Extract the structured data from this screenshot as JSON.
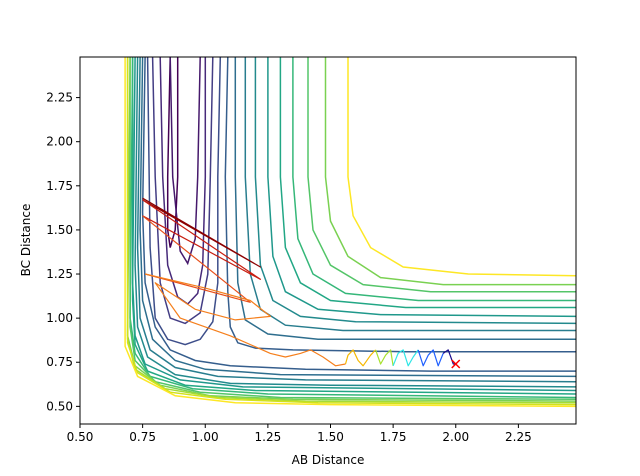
{
  "chart_data": {
    "type": "line",
    "plot_kind": "contour",
    "title": "",
    "xlabel": "AB Distance",
    "ylabel": "BC Distance",
    "xlim": [
      0.5,
      2.48
    ],
    "ylim": [
      0.4,
      2.48
    ],
    "xticks": [
      0.5,
      0.75,
      1.0,
      1.25,
      1.5,
      1.75,
      2.0,
      2.25
    ],
    "xtick_labels": [
      "0.50",
      "0.75",
      "1.00",
      "1.25",
      "1.50",
      "1.75",
      "2.00",
      "2.25"
    ],
    "yticks": [
      0.5,
      0.75,
      1.0,
      1.25,
      1.5,
      1.75,
      2.0,
      2.25
    ],
    "ytick_labels": [
      "0.50",
      "0.75",
      "1.00",
      "1.25",
      "1.50",
      "1.75",
      "2.00",
      "2.25"
    ],
    "grid": false,
    "legend": "none",
    "contours": [
      {
        "color": "#440154",
        "points": [
          [
            0.86,
            2.48
          ],
          [
            0.85,
            1.8
          ],
          [
            0.85,
            1.5
          ],
          [
            0.86,
            1.4
          ],
          [
            0.88,
            1.5
          ],
          [
            0.89,
            1.8
          ],
          [
            0.89,
            2.48
          ]
        ]
      },
      {
        "color": "#46196c",
        "points": [
          [
            0.98,
            2.48
          ],
          [
            0.97,
            1.8
          ],
          [
            0.96,
            1.45
          ],
          [
            0.93,
            1.31
          ],
          [
            0.9,
            1.38
          ],
          [
            0.87,
            1.8
          ],
          [
            0.86,
            2.48
          ]
        ]
      },
      {
        "color": "#472a7a",
        "points": [
          [
            1.0,
            2.48
          ],
          [
            1.0,
            1.8
          ],
          [
            0.99,
            1.3
          ],
          [
            0.97,
            1.14
          ],
          [
            0.93,
            1.08
          ],
          [
            0.89,
            1.12
          ],
          [
            0.85,
            1.3
          ],
          [
            0.83,
            1.8
          ],
          [
            0.82,
            2.48
          ]
        ]
      },
      {
        "color": "#433d84",
        "points": [
          [
            1.03,
            2.48
          ],
          [
            1.02,
            1.8
          ],
          [
            1.01,
            1.25
          ],
          [
            0.98,
            1.03
          ],
          [
            0.92,
            0.97
          ],
          [
            0.86,
            1.0
          ],
          [
            0.82,
            1.2
          ],
          [
            0.8,
            1.8
          ],
          [
            0.79,
            2.48
          ]
        ]
      },
      {
        "color": "#3d4e8a",
        "points": [
          [
            1.06,
            2.48
          ],
          [
            1.05,
            1.8
          ],
          [
            1.05,
            1.2
          ],
          [
            1.03,
            0.98
          ],
          [
            0.98,
            0.88
          ],
          [
            0.92,
            0.85
          ],
          [
            0.85,
            0.88
          ],
          [
            0.8,
            1.0
          ],
          [
            0.78,
            1.4
          ],
          [
            0.77,
            2.48
          ]
        ]
      },
      {
        "color": "#355e8d",
        "points": [
          [
            1.09,
            2.48
          ],
          [
            1.08,
            1.8
          ],
          [
            1.09,
            1.15
          ],
          [
            1.1,
            0.95
          ],
          [
            1.13,
            0.86
          ],
          [
            1.2,
            0.83
          ],
          [
            1.35,
            0.82
          ],
          [
            1.8,
            0.81
          ],
          [
            2.48,
            0.81
          ]
        ]
      },
      {
        "color": "#355e8d",
        "points": [
          [
            0.76,
            2.48
          ],
          [
            0.75,
            1.6
          ],
          [
            0.76,
            1.2
          ],
          [
            0.8,
            0.95
          ],
          [
            0.86,
            0.82
          ],
          [
            0.96,
            0.76
          ],
          [
            1.1,
            0.73
          ],
          [
            1.4,
            0.71
          ],
          [
            1.9,
            0.7
          ],
          [
            2.48,
            0.7
          ]
        ]
      },
      {
        "color": "#2e6e8e",
        "points": [
          [
            1.12,
            2.48
          ],
          [
            1.12,
            1.8
          ],
          [
            1.13,
            1.2
          ],
          [
            1.16,
            0.99
          ],
          [
            1.25,
            0.91
          ],
          [
            1.45,
            0.88
          ],
          [
            2.48,
            0.88
          ]
        ]
      },
      {
        "color": "#2e6e8e",
        "points": [
          [
            0.75,
            2.48
          ],
          [
            0.74,
            1.5
          ],
          [
            0.75,
            1.1
          ],
          [
            0.79,
            0.88
          ],
          [
            0.88,
            0.76
          ],
          [
            1.0,
            0.71
          ],
          [
            1.3,
            0.68
          ],
          [
            2.48,
            0.67
          ]
        ]
      },
      {
        "color": "#287d8e",
        "points": [
          [
            1.16,
            2.48
          ],
          [
            1.16,
            1.8
          ],
          [
            1.18,
            1.25
          ],
          [
            1.22,
            1.05
          ],
          [
            1.32,
            0.96
          ],
          [
            1.55,
            0.93
          ],
          [
            2.48,
            0.93
          ]
        ]
      },
      {
        "color": "#287d8e",
        "points": [
          [
            0.74,
            2.48
          ],
          [
            0.73,
            1.4
          ],
          [
            0.74,
            1.0
          ],
          [
            0.78,
            0.82
          ],
          [
            0.88,
            0.72
          ],
          [
            1.05,
            0.67
          ],
          [
            1.4,
            0.65
          ],
          [
            2.48,
            0.64
          ]
        ]
      },
      {
        "color": "#238a8d",
        "points": [
          [
            1.2,
            2.48
          ],
          [
            1.2,
            1.8
          ],
          [
            1.22,
            1.3
          ],
          [
            1.27,
            1.1
          ],
          [
            1.38,
            1.01
          ],
          [
            1.6,
            0.98
          ],
          [
            2.48,
            0.97
          ]
        ]
      },
      {
        "color": "#238a8d",
        "points": [
          [
            0.73,
            2.48
          ],
          [
            0.72,
            1.3
          ],
          [
            0.73,
            0.95
          ],
          [
            0.77,
            0.78
          ],
          [
            0.88,
            0.68
          ],
          [
            1.1,
            0.63
          ],
          [
            1.5,
            0.62
          ],
          [
            2.48,
            0.61
          ]
        ]
      },
      {
        "color": "#1f988b",
        "points": [
          [
            1.25,
            2.48
          ],
          [
            1.25,
            1.8
          ],
          [
            1.27,
            1.35
          ],
          [
            1.32,
            1.15
          ],
          [
            1.45,
            1.05
          ],
          [
            1.7,
            1.02
          ],
          [
            2.48,
            1.01
          ]
        ]
      },
      {
        "color": "#1f988b",
        "points": [
          [
            0.72,
            2.48
          ],
          [
            0.71,
            1.2
          ],
          [
            0.72,
            0.9
          ],
          [
            0.76,
            0.74
          ],
          [
            0.9,
            0.65
          ],
          [
            1.15,
            0.61
          ],
          [
            2.48,
            0.59
          ]
        ]
      },
      {
        "color": "#22a785",
        "points": [
          [
            1.3,
            2.48
          ],
          [
            1.3,
            1.8
          ],
          [
            1.32,
            1.4
          ],
          [
            1.38,
            1.2
          ],
          [
            1.5,
            1.1
          ],
          [
            1.8,
            1.06
          ],
          [
            2.48,
            1.06
          ]
        ]
      },
      {
        "color": "#22a785",
        "points": [
          [
            0.71,
            2.48
          ],
          [
            0.71,
            1.1
          ],
          [
            0.72,
            0.85
          ],
          [
            0.77,
            0.7
          ],
          [
            0.92,
            0.62
          ],
          [
            1.2,
            0.59
          ],
          [
            2.48,
            0.57
          ]
        ]
      },
      {
        "color": "#35b779",
        "points": [
          [
            1.35,
            2.48
          ],
          [
            1.35,
            1.8
          ],
          [
            1.37,
            1.45
          ],
          [
            1.43,
            1.25
          ],
          [
            1.56,
            1.14
          ],
          [
            1.85,
            1.1
          ],
          [
            2.48,
            1.1
          ]
        ]
      },
      {
        "color": "#35b779",
        "points": [
          [
            0.71,
            2.48
          ],
          [
            0.7,
            1.0
          ],
          [
            0.72,
            0.8
          ],
          [
            0.78,
            0.67
          ],
          [
            0.95,
            0.6
          ],
          [
            1.25,
            0.57
          ],
          [
            2.48,
            0.55
          ]
        ]
      },
      {
        "color": "#54c568",
        "points": [
          [
            1.41,
            2.48
          ],
          [
            1.41,
            1.8
          ],
          [
            1.43,
            1.5
          ],
          [
            1.5,
            1.3
          ],
          [
            1.63,
            1.19
          ],
          [
            1.9,
            1.15
          ],
          [
            2.48,
            1.15
          ]
        ]
      },
      {
        "color": "#54c568",
        "points": [
          [
            0.7,
            2.48
          ],
          [
            0.7,
            0.95
          ],
          [
            0.72,
            0.76
          ],
          [
            0.8,
            0.64
          ],
          [
            0.98,
            0.58
          ],
          [
            1.3,
            0.55
          ],
          [
            2.48,
            0.54
          ]
        ]
      },
      {
        "color": "#7ad151",
        "points": [
          [
            1.48,
            2.48
          ],
          [
            1.48,
            1.8
          ],
          [
            1.5,
            1.55
          ],
          [
            1.57,
            1.35
          ],
          [
            1.7,
            1.23
          ],
          [
            1.95,
            1.19
          ],
          [
            2.48,
            1.19
          ]
        ]
      },
      {
        "color": "#7ad151",
        "points": [
          [
            0.7,
            2.48
          ],
          [
            0.69,
            0.9
          ],
          [
            0.72,
            0.73
          ],
          [
            0.82,
            0.62
          ],
          [
            1.02,
            0.56
          ],
          [
            1.35,
            0.54
          ],
          [
            2.48,
            0.53
          ]
        ]
      },
      {
        "color": "#a5db36",
        "points": [
          [
            0.69,
            2.48
          ],
          [
            0.69,
            0.88
          ],
          [
            0.72,
            0.71
          ],
          [
            0.84,
            0.6
          ],
          [
            1.05,
            0.55
          ],
          [
            1.4,
            0.53
          ],
          [
            2.48,
            0.52
          ]
        ]
      },
      {
        "color": "#d2e21b",
        "points": [
          [
            0.69,
            2.48
          ],
          [
            0.69,
            0.86
          ],
          [
            0.73,
            0.69
          ],
          [
            0.86,
            0.58
          ],
          [
            1.08,
            0.54
          ],
          [
            1.45,
            0.52
          ],
          [
            2.48,
            0.51
          ]
        ]
      },
      {
        "color": "#fde725",
        "points": [
          [
            1.57,
            2.48
          ],
          [
            1.57,
            1.8
          ],
          [
            1.59,
            1.58
          ],
          [
            1.66,
            1.4
          ],
          [
            1.79,
            1.29
          ],
          [
            2.05,
            1.25
          ],
          [
            2.48,
            1.24
          ]
        ]
      },
      {
        "color": "#fde725",
        "points": [
          [
            0.68,
            2.48
          ],
          [
            0.68,
            0.84
          ],
          [
            0.73,
            0.67
          ],
          [
            0.88,
            0.56
          ],
          [
            1.12,
            0.52
          ],
          [
            1.5,
            0.51
          ],
          [
            2.48,
            0.5
          ]
        ]
      }
    ],
    "trajectory": {
      "segments": [
        {
          "color": "#8b0000",
          "points": [
            [
              0.75,
              1.68
            ],
            [
              1.22,
              1.29
            ],
            [
              0.75,
              1.67
            ]
          ]
        },
        {
          "color": "#c81e10",
          "points": [
            [
              0.75,
              1.67
            ],
            [
              1.22,
              1.22
            ],
            [
              0.75,
              1.58
            ]
          ]
        },
        {
          "color": "#e8501b",
          "points": [
            [
              0.75,
              1.58
            ],
            [
              1.18,
              1.09
            ],
            [
              0.76,
              1.25
            ]
          ]
        },
        {
          "color": "#f57f1c",
          "points": [
            [
              0.76,
              1.25
            ],
            [
              1.0,
              1.17
            ],
            [
              1.18,
              1.1
            ],
            [
              1.26,
              1.01
            ],
            [
              1.12,
              0.99
            ],
            [
              0.96,
              1.05
            ],
            [
              0.8,
              1.2
            ],
            [
              0.9,
              1.0
            ],
            [
              1.1,
              0.9
            ],
            [
              1.26,
              0.8
            ],
            [
              1.32,
              0.78
            ],
            [
              1.38,
              0.8
            ],
            [
              1.42,
              0.82
            ],
            [
              1.47,
              0.78
            ],
            [
              1.52,
              0.73
            ],
            [
              1.56,
              0.74
            ]
          ]
        },
        {
          "color": "#f5b800",
          "points": [
            [
              1.56,
              0.74
            ],
            [
              1.57,
              0.79
            ],
            [
              1.59,
              0.82
            ],
            [
              1.61,
              0.76
            ],
            [
              1.63,
              0.73
            ],
            [
              1.66,
              0.79
            ],
            [
              1.68,
              0.82
            ]
          ]
        },
        {
          "color": "#a8e22e",
          "points": [
            [
              1.68,
              0.82
            ],
            [
              1.7,
              0.74
            ],
            [
              1.72,
              0.79
            ],
            [
              1.74,
              0.82
            ],
            [
              1.75,
              0.73
            ]
          ]
        },
        {
          "color": "#2ee6e6",
          "points": [
            [
              1.75,
              0.73
            ],
            [
              1.77,
              0.8
            ],
            [
              1.79,
              0.82
            ],
            [
              1.81,
              0.73
            ],
            [
              1.83,
              0.78
            ],
            [
              1.85,
              0.82
            ]
          ]
        },
        {
          "color": "#2060ff",
          "points": [
            [
              1.85,
              0.82
            ],
            [
              1.87,
              0.73
            ],
            [
              1.89,
              0.79
            ],
            [
              1.91,
              0.82
            ],
            [
              1.93,
              0.73
            ],
            [
              1.95,
              0.8
            ]
          ]
        },
        {
          "color": "#1a0a8a",
          "points": [
            [
              1.95,
              0.8
            ],
            [
              1.97,
              0.82
            ],
            [
              1.99,
              0.74
            ],
            [
              2.0,
              0.74
            ]
          ]
        }
      ],
      "end_marker": {
        "x": 2.0,
        "y": 0.74,
        "symbol": "x",
        "color": "#ff0000"
      }
    }
  }
}
